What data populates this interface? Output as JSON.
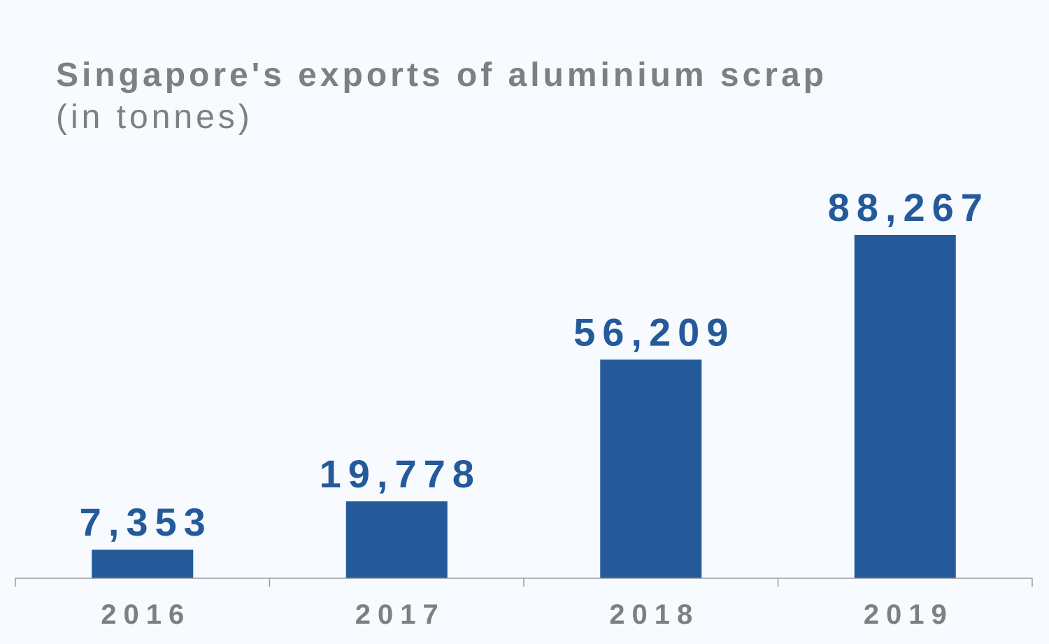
{
  "chart_data": {
    "type": "bar",
    "title": "Singapore's exports of aluminium scrap",
    "subtitle": "(in tonnes)",
    "categories": [
      "2016",
      "2017",
      "2018",
      "2019"
    ],
    "values": [
      7353,
      19778,
      56209,
      88267
    ],
    "value_labels": [
      "7,353",
      "19,778",
      "56,209",
      "88,267"
    ],
    "ylim": [
      0,
      100000
    ],
    "grid": false,
    "legend": "none",
    "colors": {
      "bar": "#245a9a",
      "value_label": "#245a9a",
      "text": "#7f7f7f",
      "axis": "#9a9a9a",
      "background": "#f7fafe"
    }
  }
}
